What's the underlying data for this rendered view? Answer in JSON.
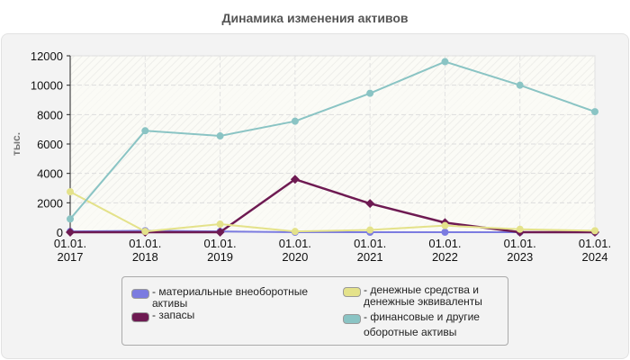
{
  "title": "Динамика изменения активов",
  "chart_data": {
    "type": "line",
    "title": "Динамика изменения активов",
    "xlabel": "",
    "ylabel": "тыс.",
    "ylim": [
      0,
      12000
    ],
    "yticks": [
      0,
      2000,
      4000,
      6000,
      8000,
      10000,
      12000
    ],
    "grid": true,
    "legend_position": "bottom",
    "categories": [
      "01.01. 2017",
      "01.01. 2018",
      "01.01. 2019",
      "01.01. 2020",
      "01.01. 2021",
      "01.01. 2022",
      "01.01. 2023",
      "01.01. 2024"
    ],
    "series": [
      {
        "name": "материальные внеоборотные активы",
        "color": "#7b7be0",
        "values": [
          50,
          100,
          50,
          0,
          0,
          0,
          0,
          0
        ]
      },
      {
        "name": "запасы",
        "color": "#6e1a52",
        "values": [
          0,
          0,
          0,
          3600,
          1950,
          650,
          0,
          0
        ]
      },
      {
        "name": "денежные средства и денежные эквиваленты",
        "color": "#e4e28a",
        "values": [
          2750,
          50,
          550,
          50,
          150,
          450,
          200,
          100
        ]
      },
      {
        "name": "финансовые и другие оборотные активы",
        "color": "#8ac4c4",
        "values": [
          900,
          6900,
          6550,
          7550,
          9450,
          11600,
          10000,
          8200
        ]
      }
    ]
  },
  "legend": {
    "items": [
      {
        "label_line1": "- материальные внеоборотные",
        "label_line2": "активы",
        "color": "#7b7be0"
      },
      {
        "label_line1": "- запасы",
        "label_line2": "",
        "color": "#6e1a52"
      },
      {
        "label_line1": "- денежные средства и",
        "label_line2": "денежные эквиваленты",
        "color": "#e4e28a"
      },
      {
        "label_line1": "- финансовые и другие",
        "label_line2": "оборотные активы",
        "color": "#8ac4c4"
      }
    ]
  }
}
